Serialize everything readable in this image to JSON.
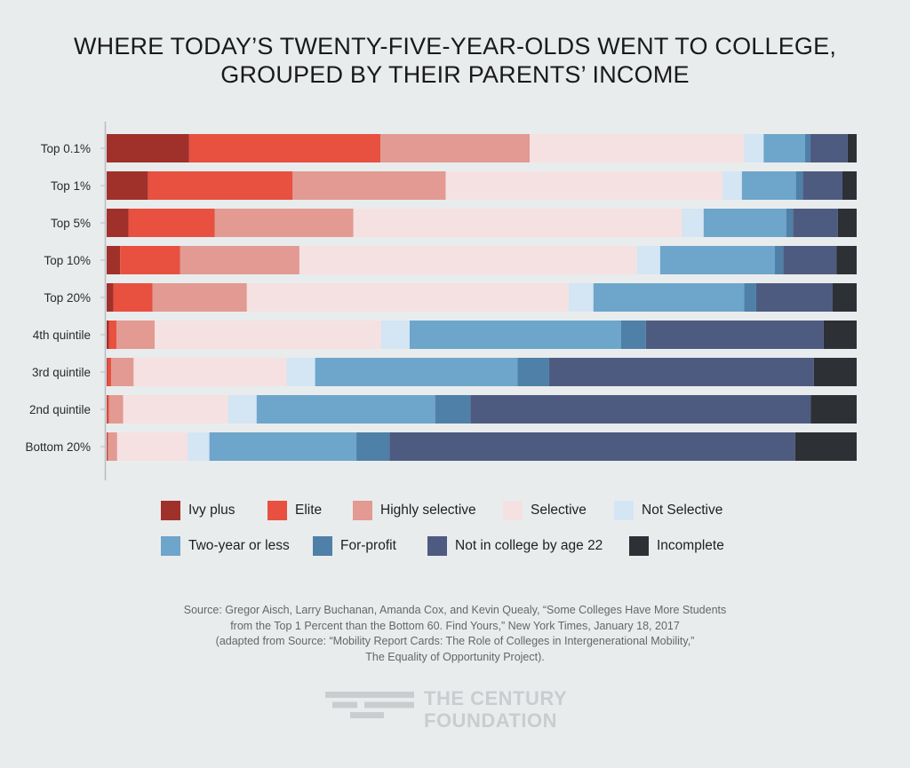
{
  "title_line1": "WHERE TODAY’S TWENTY-FIVE-YEAR-OLDS WENT TO COLLEGE,",
  "title_line2": "GROUPED BY THEIR PARENTS’ INCOME",
  "chart_data": {
    "type": "bar",
    "orientation": "horizontal",
    "stacked": true,
    "normalized_to": 100,
    "xlim": [
      0,
      100
    ],
    "xaxis_visible": false,
    "grid": false,
    "legend_position": "bottom",
    "categories": [
      "Top 0.1%",
      "Top 1%",
      "Top 5%",
      "Top 10%",
      "Top 20%",
      "4th quintile",
      "3rd quintile",
      "2nd quintile",
      "Bottom 20%"
    ],
    "series": [
      {
        "name": "Ivy plus",
        "color": "#a0302a",
        "values": [
          11.0,
          5.5,
          2.9,
          1.8,
          0.9,
          0.3,
          0.1,
          0.1,
          0.1
        ]
      },
      {
        "name": "Elite",
        "color": "#e85040",
        "values": [
          25.5,
          19.3,
          11.5,
          8.0,
          5.2,
          1.0,
          0.5,
          0.2,
          0.1
        ]
      },
      {
        "name": "Highly selective",
        "color": "#e29a92",
        "values": [
          19.9,
          20.4,
          18.5,
          15.9,
          12.6,
          5.1,
          3.0,
          1.9,
          1.2
        ]
      },
      {
        "name": "Selective",
        "color": "#f5e1e1",
        "values": [
          28.6,
          36.9,
          43.8,
          45.0,
          42.9,
          30.2,
          20.4,
          14.0,
          9.4
        ]
      },
      {
        "name": "Not Selective",
        "color": "#d4e5f4",
        "values": [
          2.6,
          2.6,
          2.9,
          3.1,
          3.3,
          3.8,
          3.8,
          3.8,
          2.9
        ]
      },
      {
        "name": "Two-year or less",
        "color": "#6ea5cb",
        "values": [
          5.5,
          7.2,
          11.0,
          15.3,
          20.1,
          28.2,
          27.0,
          23.8,
          19.6
        ]
      },
      {
        "name": "For-profit",
        "color": "#4e80a8",
        "values": [
          0.7,
          0.9,
          0.9,
          1.1,
          1.6,
          3.3,
          4.2,
          4.7,
          4.4
        ]
      },
      {
        "name": "Not in college by age 22",
        "color": "#4e5b80",
        "values": [
          5.0,
          5.3,
          6.0,
          7.1,
          10.2,
          23.7,
          35.3,
          45.4,
          54.1
        ]
      },
      {
        "name": "Incomplete",
        "color": "#2d3035",
        "values": [
          1.2,
          1.9,
          2.5,
          2.7,
          3.2,
          4.4,
          5.7,
          6.1,
          8.2
        ]
      }
    ]
  },
  "source_lines": [
    "Source: Gregor Aisch, Larry Buchanan, Amanda Cox, and Kevin Quealy, “Some Colleges Have More Students",
    "from the Top 1 Percent than the Bottom 60. Find Yours,” New York Times, January 18, 2017",
    "(adapted from Source: “Mobility Report Cards: The Role of Colleges in Intergenerational Mobility,”",
    "The Equality of Opportunity Project)."
  ],
  "logo": {
    "line1": "THE CENTURY",
    "line2": "FOUNDATION",
    "icon": "century-foundation-logo-mark",
    "color": "#cacdd0"
  }
}
